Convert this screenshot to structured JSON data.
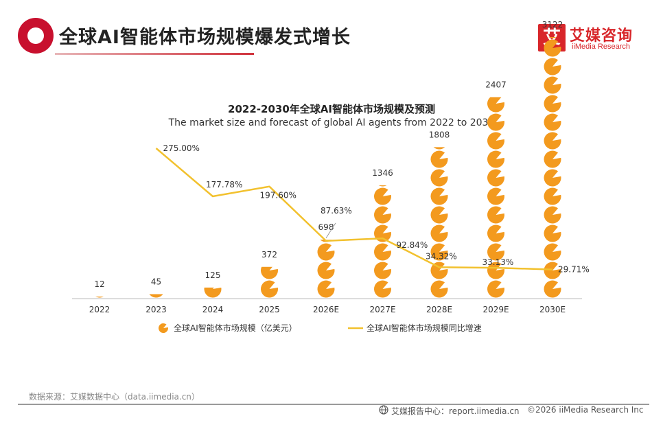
{
  "header": {
    "title": "全球AI智能体市场规模爆发式增长",
    "logo_mark": "艾",
    "logo_cn": "艾媒咨询",
    "logo_en": "iiMedia Research"
  },
  "chart_data": {
    "type": "bar",
    "title": "2022-2030年全球AI智能体市场规模及预测",
    "subtitle": "The market size and forecast of global AI agents from 2022 to 2030",
    "categories": [
      "2022",
      "2023",
      "2024",
      "2025",
      "2026E",
      "2027E",
      "2028E",
      "2029E",
      "2030E"
    ],
    "series": [
      {
        "name": "全球AI智能体市场规模（亿美元）",
        "kind": "bar",
        "display": "stacked pie icons",
        "values": [
          12,
          45,
          125,
          372,
          698,
          1346,
          1808,
          2407,
          3122
        ],
        "labels": [
          "12",
          "45",
          "125",
          "372",
          "698",
          "1346",
          "1808",
          "2407",
          "3122"
        ],
        "color": "#f39a1e"
      },
      {
        "name": "全球AI智能体市场规模同比增速",
        "kind": "line",
        "values_percent": [
          null,
          275.0,
          177.78,
          197.6,
          87.63,
          92.84,
          34.32,
          33.13,
          29.71
        ],
        "labels": [
          "",
          "275.00%",
          "177.78%",
          "197.60%",
          "87.63%",
          "92.84%",
          "34.32%",
          "33.13%",
          "29.71%"
        ],
        "color": "#f2c12e"
      }
    ],
    "legend_position": "bottom",
    "grid": false
  },
  "footer": {
    "source": "数据来源：艾媒数据中心（data.iimedia.cn）",
    "report_center": "艾媒报告中心：report.iimedia.cn",
    "copyright": "©2026  iiMedia Research  Inc"
  }
}
